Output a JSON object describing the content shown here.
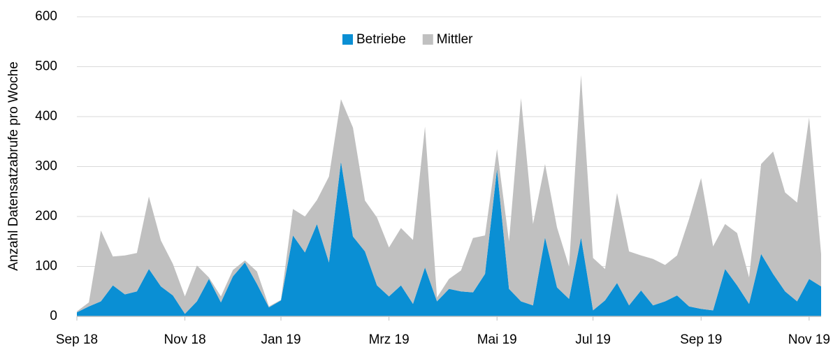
{
  "chart_data": {
    "type": "stacked_area",
    "y_axis_label": "Anzahl Datensatzabrufe pro Woche",
    "categories": [
      "Sep 18",
      null,
      null,
      null,
      null,
      null,
      null,
      null,
      null,
      "Nov 18",
      null,
      null,
      null,
      null,
      null,
      null,
      null,
      "Jan 19",
      null,
      null,
      null,
      null,
      null,
      null,
      null,
      null,
      "Mrz 19",
      null,
      null,
      null,
      null,
      null,
      null,
      null,
      null,
      "Mai 19",
      null,
      null,
      null,
      null,
      null,
      null,
      null,
      "Jul 19",
      null,
      null,
      null,
      null,
      null,
      null,
      null,
      null,
      "Sep 19",
      null,
      null,
      null,
      null,
      null,
      null,
      null,
      null,
      "Nov 19",
      null
    ],
    "series": [
      {
        "name": "Betriebe",
        "color": "#0a8fd4",
        "values": [
          8,
          20,
          30,
          62,
          44,
          50,
          95,
          60,
          42,
          5,
          30,
          75,
          28,
          80,
          108,
          65,
          18,
          32,
          162,
          128,
          185,
          108,
          310,
          160,
          130,
          62,
          40,
          62,
          25,
          98,
          30,
          55,
          50,
          48,
          85,
          295,
          55,
          30,
          22,
          158,
          58,
          35,
          158,
          12,
          32,
          67,
          22,
          52,
          22,
          30,
          42,
          20,
          15,
          12,
          95,
          62,
          25,
          125,
          85,
          50,
          30,
          75,
          60
        ]
      },
      {
        "name": "Mittler",
        "color": "#c0c0c0",
        "values": [
          2,
          8,
          142,
          58,
          78,
          77,
          145,
          92,
          63,
          35,
          72,
          3,
          12,
          13,
          4,
          25,
          2,
          1,
          53,
          72,
          48,
          172,
          125,
          218,
          102,
          136,
          98,
          115,
          128,
          282,
          8,
          20,
          42,
          109,
          77,
          40,
          95,
          407,
          163,
          147,
          120,
          65,
          325,
          105,
          63,
          180,
          108,
          70,
          93,
          73,
          80,
          175,
          262,
          128,
          90,
          105,
          53,
          180,
          245,
          198,
          198,
          323,
          65
        ]
      }
    ],
    "ylim": [
      0,
      600
    ],
    "yticks": [
      0,
      100,
      200,
      300,
      400,
      500,
      600
    ],
    "grid": true,
    "legend": "top"
  }
}
